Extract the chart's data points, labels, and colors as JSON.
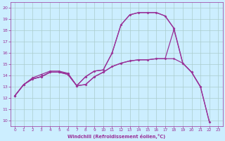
{
  "bg_color": "#cceeff",
  "line_color": "#993399",
  "grid_color": "#aacccc",
  "xlabel": "Windchill (Refroidissement éolien,°C)",
  "ylabel_ticks": [
    10,
    11,
    12,
    13,
    14,
    15,
    16,
    17,
    18,
    19,
    20
  ],
  "xlim": [
    -0.5,
    23.5
  ],
  "ylim": [
    9.5,
    20.5
  ],
  "xticks": [
    0,
    1,
    2,
    3,
    4,
    5,
    6,
    7,
    8,
    9,
    10,
    11,
    12,
    13,
    14,
    15,
    16,
    17,
    18,
    19,
    20,
    21,
    22,
    23
  ],
  "curve1_x": [
    0,
    1,
    2,
    3,
    4,
    5,
    6,
    7,
    8,
    9,
    10,
    11,
    12,
    13,
    14,
    15,
    16,
    17,
    18
  ],
  "curve1_y": [
    12.2,
    13.2,
    13.8,
    14.1,
    14.4,
    14.4,
    14.2,
    13.1,
    13.9,
    14.4,
    14.5,
    16.0,
    18.5,
    19.4,
    19.6,
    19.6,
    19.6,
    19.3,
    18.2
  ],
  "curve2_x": [
    0,
    1,
    2,
    3,
    4,
    5,
    6,
    7,
    8,
    9,
    10,
    11,
    12,
    13,
    14,
    15,
    16,
    17,
    18,
    19,
    20,
    21
  ],
  "curve2_y": [
    12.2,
    13.2,
    13.7,
    13.9,
    14.3,
    14.3,
    14.1,
    13.1,
    13.2,
    13.9,
    14.3,
    14.8,
    15.1,
    15.3,
    15.4,
    15.4,
    15.5,
    15.5,
    15.5,
    15.1,
    14.3,
    13.0
  ],
  "curve3_x": [
    0,
    1,
    2,
    3,
    4,
    5,
    6,
    7,
    8,
    9,
    10,
    11,
    12,
    13,
    14,
    15,
    16,
    17,
    18,
    19,
    20,
    21,
    22
  ],
  "curve3_y": [
    12.2,
    13.2,
    13.7,
    13.9,
    14.3,
    14.3,
    14.1,
    13.1,
    13.2,
    13.9,
    14.3,
    14.8,
    15.1,
    15.3,
    15.4,
    15.4,
    15.5,
    15.5,
    18.1,
    15.1,
    14.3,
    13.0,
    9.9
  ],
  "curve4_x": [
    0,
    1,
    2,
    3,
    4,
    5,
    6,
    7,
    8,
    9,
    10,
    11,
    12,
    13,
    14,
    15,
    16,
    17,
    18,
    19,
    20,
    21,
    22
  ],
  "curve4_y": [
    12.2,
    13.2,
    13.7,
    13.9,
    14.3,
    14.3,
    14.2,
    13.1,
    13.9,
    14.4,
    14.5,
    16.0,
    18.5,
    19.4,
    19.6,
    19.6,
    19.6,
    19.3,
    18.2,
    15.1,
    14.3,
    13.0,
    9.9
  ]
}
